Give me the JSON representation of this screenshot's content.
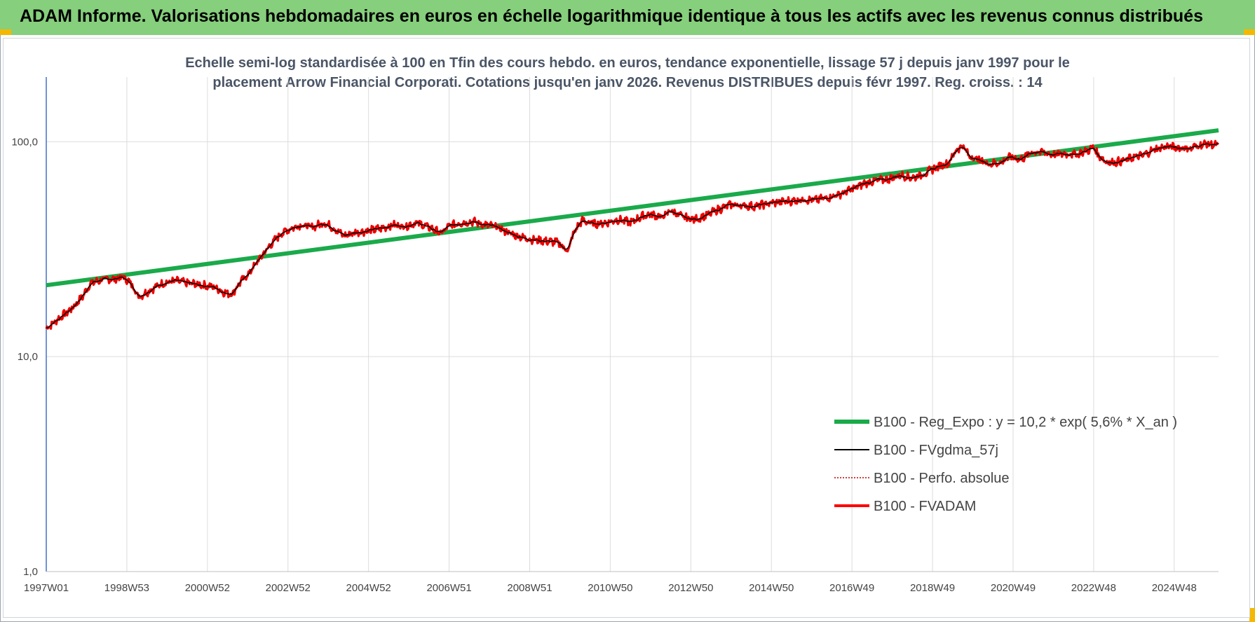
{
  "header": {
    "title": "ADAM Informe. Valorisations hebdomadaires en euros en échelle logarithmique identique à tous les actifs avec les revenus connus distribués",
    "color": "#86cf7c"
  },
  "chart_data": {
    "type": "line",
    "title_lines": [
      "Echelle semi-log standardisée à 100 en Tfin des cours hebdo. en euros, tendance exponentielle, lissage 57 j depuis janv 1997 pour le",
      "placement Arrow Financial Corporati. Cotations jusqu'en janv 2026. Revenus DISTRIBUES depuis févr 1997. Reg. croiss. : 14"
    ],
    "y_scale": "log",
    "ylim": [
      1,
      200
    ],
    "y_ticks": [
      {
        "value": 1,
        "label": "1,0"
      },
      {
        "value": 10,
        "label": "10,0"
      },
      {
        "value": 100,
        "label": "100,0"
      }
    ],
    "x_range_years": [
      1997.0,
      2026.1
    ],
    "x_ticks": [
      {
        "year": 1997.0,
        "label": "1997W01"
      },
      {
        "year": 1999.0,
        "label": "1998W53"
      },
      {
        "year": 2001.0,
        "label": "2000W52"
      },
      {
        "year": 2003.0,
        "label": "2002W52"
      },
      {
        "year": 2005.0,
        "label": "2004W52"
      },
      {
        "year": 2007.0,
        "label": "2006W51"
      },
      {
        "year": 2009.0,
        "label": "2008W51"
      },
      {
        "year": 2011.0,
        "label": "2010W50"
      },
      {
        "year": 2013.0,
        "label": "2012W50"
      },
      {
        "year": 2015.0,
        "label": "2014W50"
      },
      {
        "year": 2017.0,
        "label": "2016W49"
      },
      {
        "year": 2019.0,
        "label": "2018W49"
      },
      {
        "year": 2021.0,
        "label": "2020W49"
      },
      {
        "year": 2023.0,
        "label": "2022W48"
      },
      {
        "year": 2025.0,
        "label": "2024W48"
      }
    ],
    "grid": "vertical-and-horizontal",
    "legend_position": "bottom-right",
    "series": [
      {
        "name": "B100 - Reg_Expo : y = 10,2 * exp( 5,6% *  X_an )",
        "kind": "trend",
        "color": "#1aaa4a",
        "start": {
          "year": 1997.0,
          "value": 21.5
        },
        "end": {
          "year": 2026.1,
          "value": 113
        }
      },
      {
        "name": "B100 - FVgdma_57j",
        "kind": "smoothed",
        "color": "#000000"
      },
      {
        "name": "B100 - Perfo. absolue",
        "kind": "dotted",
        "color": "#c00000"
      },
      {
        "name": "B100 - FVADAM",
        "kind": "main",
        "color": "#ff0000"
      }
    ],
    "points": [
      [
        1997.0,
        13.5
      ],
      [
        1997.3,
        15.0
      ],
      [
        1997.6,
        16.5
      ],
      [
        1997.9,
        19.0
      ],
      [
        1998.1,
        22.0
      ],
      [
        1998.4,
        22.8
      ],
      [
        1998.7,
        23.0
      ],
      [
        1998.9,
        23.5
      ],
      [
        1999.1,
        22.0
      ],
      [
        1999.3,
        19.0
      ],
      [
        1999.6,
        20.5
      ],
      [
        1999.9,
        22.0
      ],
      [
        2000.2,
        22.5
      ],
      [
        2000.5,
        22.0
      ],
      [
        2000.9,
        21.5
      ],
      [
        2001.2,
        21.0
      ],
      [
        2001.4,
        20.0
      ],
      [
        2001.6,
        19.5
      ],
      [
        2001.8,
        22.0
      ],
      [
        2002.0,
        24.0
      ],
      [
        2002.2,
        27.0
      ],
      [
        2002.5,
        32.0
      ],
      [
        2002.8,
        37.0
      ],
      [
        2003.0,
        39.0
      ],
      [
        2003.3,
        41.0
      ],
      [
        2003.6,
        40.0
      ],
      [
        2003.9,
        42.0
      ],
      [
        2004.1,
        40.0
      ],
      [
        2004.4,
        36.5
      ],
      [
        2004.7,
        38.0
      ],
      [
        2005.0,
        38.5
      ],
      [
        2005.3,
        39.5
      ],
      [
        2005.6,
        41.0
      ],
      [
        2005.9,
        40.5
      ],
      [
        2006.2,
        42.0
      ],
      [
        2006.5,
        40.0
      ],
      [
        2006.8,
        37.5
      ],
      [
        2007.0,
        40.5
      ],
      [
        2007.3,
        42.0
      ],
      [
        2007.6,
        42.5
      ],
      [
        2007.9,
        41.0
      ],
      [
        2008.2,
        40.0
      ],
      [
        2008.5,
        37.5
      ],
      [
        2008.8,
        36.0
      ],
      [
        2009.1,
        35.0
      ],
      [
        2009.4,
        34.5
      ],
      [
        2009.7,
        34.0
      ],
      [
        2009.95,
        31.0
      ],
      [
        2010.1,
        38.0
      ],
      [
        2010.3,
        43.0
      ],
      [
        2010.6,
        41.5
      ],
      [
        2010.9,
        42.0
      ],
      [
        2011.2,
        43.5
      ],
      [
        2011.5,
        42.0
      ],
      [
        2011.8,
        45.0
      ],
      [
        2012.0,
        46.0
      ],
      [
        2012.3,
        44.5
      ],
      [
        2012.5,
        48.0
      ],
      [
        2012.8,
        44.5
      ],
      [
        2013.1,
        43.5
      ],
      [
        2013.4,
        45.5
      ],
      [
        2013.7,
        48.5
      ],
      [
        2014.0,
        51.0
      ],
      [
        2014.3,
        50.5
      ],
      [
        2014.6,
        50.0
      ],
      [
        2014.9,
        51.5
      ],
      [
        2015.2,
        52.5
      ],
      [
        2015.5,
        53.0
      ],
      [
        2015.8,
        54.0
      ],
      [
        2016.1,
        53.5
      ],
      [
        2016.4,
        55.0
      ],
      [
        2016.7,
        57.0
      ],
      [
        2017.0,
        60.0
      ],
      [
        2017.3,
        64.0
      ],
      [
        2017.6,
        66.0
      ],
      [
        2017.9,
        67.0
      ],
      [
        2018.2,
        70.0
      ],
      [
        2018.5,
        68.0
      ],
      [
        2018.8,
        71.0
      ],
      [
        2019.1,
        76.0
      ],
      [
        2019.4,
        80.0
      ],
      [
        2019.6,
        92.0
      ],
      [
        2019.75,
        96.0
      ],
      [
        2019.9,
        86.0
      ],
      [
        2020.1,
        83.0
      ],
      [
        2020.4,
        79.0
      ],
      [
        2020.7,
        80.0
      ],
      [
        2020.9,
        85.0
      ],
      [
        2021.2,
        83.0
      ],
      [
        2021.5,
        90.0
      ],
      [
        2021.8,
        89.0
      ],
      [
        2022.0,
        87.0
      ],
      [
        2022.3,
        88.0
      ],
      [
        2022.6,
        87.5
      ],
      [
        2022.9,
        92.0
      ],
      [
        2023.0,
        95.0
      ],
      [
        2023.1,
        87.0
      ],
      [
        2023.3,
        81.0
      ],
      [
        2023.5,
        80.0
      ],
      [
        2023.8,
        82.0
      ],
      [
        2024.0,
        85.0
      ],
      [
        2024.2,
        86.0
      ],
      [
        2024.5,
        92.0
      ],
      [
        2024.8,
        95.0
      ],
      [
        2025.1,
        94.0
      ],
      [
        2025.4,
        93.0
      ],
      [
        2025.6,
        96.0
      ],
      [
        2025.8,
        98.0
      ],
      [
        2026.1,
        96.0
      ]
    ]
  }
}
